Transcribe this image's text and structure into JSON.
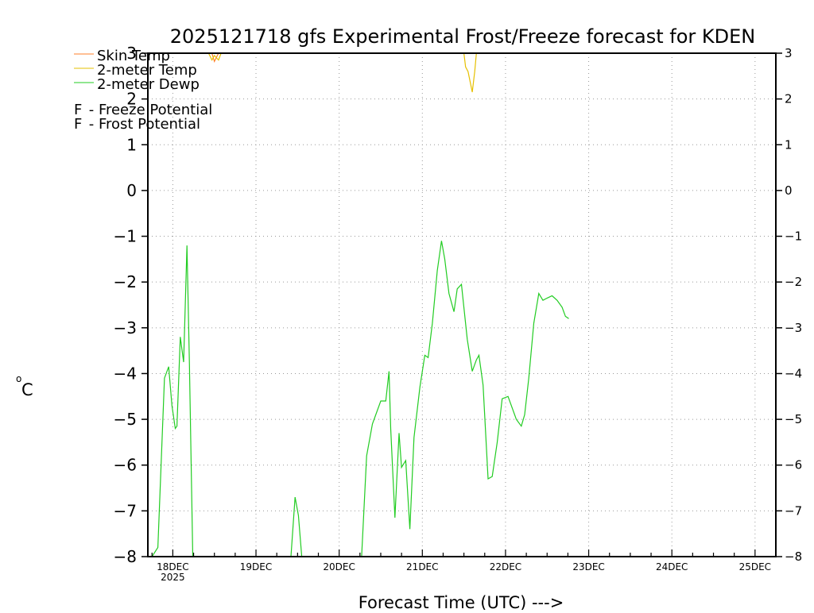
{
  "chart_data": {
    "type": "line",
    "title": "2025121718 gfs Experimental Frost/Freeze forecast for KDEN",
    "xlabel": "Forecast Time (UTC) --->",
    "ylabel": "°C",
    "ylabel_superscript": "o",
    "ylabel_unit": "C",
    "ylim": [
      -8,
      3
    ],
    "y_ticks": [
      3,
      2,
      1,
      0,
      -1,
      -2,
      -3,
      -4,
      -5,
      -6,
      -7,
      -8
    ],
    "xlim": [
      -0.3,
      7.25
    ],
    "x_ticks": [
      {
        "x": 0,
        "label": "18DEC",
        "sublabel": "2025"
      },
      {
        "x": 1,
        "label": "19DEC",
        "sublabel": ""
      },
      {
        "x": 2,
        "label": "20DEC",
        "sublabel": ""
      },
      {
        "x": 3,
        "label": "21DEC",
        "sublabel": ""
      },
      {
        "x": 4,
        "label": "22DEC",
        "sublabel": ""
      },
      {
        "x": 5,
        "label": "23DEC",
        "sublabel": ""
      },
      {
        "x": 6,
        "label": "24DEC",
        "sublabel": ""
      },
      {
        "x": 7,
        "label": "25DEC",
        "sublabel": ""
      }
    ],
    "grid": true,
    "legend": [
      {
        "name": "Skin Temp",
        "color": "#ff7f2a"
      },
      {
        "name": "2-meter Temp",
        "color": "#e6c000"
      },
      {
        "name": "2-meter Dewp",
        "color": "#22cc22"
      }
    ],
    "potential_legend": [
      {
        "letter": "F",
        "text": " - Freeze Potential",
        "color": "#cc22aa"
      },
      {
        "letter": "F",
        "text": " - Frost Potential",
        "color": "#3355ee"
      }
    ],
    "series": [
      {
        "name": "Skin Temp",
        "color": "#ff7f2a",
        "segments": [
          [
            [
              0.47,
              3.0
            ],
            [
              0.5,
              2.82
            ],
            [
              0.55,
              3.0
            ]
          ]
        ]
      },
      {
        "name": "2-meter Temp",
        "color": "#e6c000",
        "segments": [
          [
            [
              0.43,
              3.0
            ],
            [
              0.47,
              2.85
            ],
            [
              0.5,
              2.95
            ],
            [
              0.55,
              2.85
            ],
            [
              0.58,
              3.0
            ]
          ],
          [
            [
              3.5,
              3.0
            ],
            [
              3.52,
              2.7
            ],
            [
              3.55,
              2.6
            ],
            [
              3.6,
              2.15
            ],
            [
              3.63,
              2.6
            ],
            [
              3.65,
              3.0
            ]
          ]
        ]
      },
      {
        "name": "2-meter Dewp",
        "color": "#22cc22",
        "segments": [
          [
            [
              -0.25,
              -8.0
            ],
            [
              -0.18,
              -7.8
            ],
            [
              -0.1,
              -4.1
            ],
            [
              -0.05,
              -3.85
            ],
            [
              -0.01,
              -4.7
            ],
            [
              0.03,
              -5.2
            ],
            [
              0.05,
              -5.15
            ],
            [
              0.09,
              -3.2
            ],
            [
              0.13,
              -3.75
            ],
            [
              0.17,
              -1.2
            ],
            [
              0.2,
              -3.8
            ],
            [
              0.22,
              -5.9
            ],
            [
              0.24,
              -8.0
            ]
          ],
          [
            [
              1.42,
              -8.0
            ],
            [
              1.47,
              -6.7
            ],
            [
              1.51,
              -7.1
            ],
            [
              1.55,
              -8.0
            ]
          ],
          [
            [
              2.27,
              -8.0
            ],
            [
              2.33,
              -5.8
            ],
            [
              2.4,
              -5.1
            ],
            [
              2.5,
              -4.6
            ],
            [
              2.56,
              -4.6
            ],
            [
              2.6,
              -3.95
            ],
            [
              2.62,
              -5.2
            ],
            [
              2.67,
              -7.15
            ],
            [
              2.72,
              -5.3
            ],
            [
              2.75,
              -6.05
            ],
            [
              2.8,
              -5.9
            ],
            [
              2.85,
              -7.4
            ],
            [
              2.9,
              -5.4
            ],
            [
              2.97,
              -4.3
            ],
            [
              3.03,
              -3.6
            ],
            [
              3.07,
              -3.65
            ],
            [
              3.12,
              -2.9
            ],
            [
              3.18,
              -1.75
            ],
            [
              3.23,
              -1.1
            ],
            [
              3.27,
              -1.5
            ],
            [
              3.32,
              -2.25
            ],
            [
              3.38,
              -2.65
            ],
            [
              3.42,
              -2.15
            ],
            [
              3.47,
              -2.05
            ],
            [
              3.54,
              -3.25
            ],
            [
              3.6,
              -3.95
            ],
            [
              3.65,
              -3.7
            ],
            [
              3.68,
              -3.6
            ],
            [
              3.73,
              -4.25
            ],
            [
              3.79,
              -6.3
            ],
            [
              3.84,
              -6.25
            ],
            [
              3.9,
              -5.5
            ],
            [
              3.96,
              -4.55
            ],
            [
              4.03,
              -4.5
            ],
            [
              4.08,
              -4.75
            ],
            [
              4.13,
              -5.0
            ],
            [
              4.19,
              -5.15
            ],
            [
              4.23,
              -4.9
            ],
            [
              4.28,
              -4.1
            ],
            [
              4.34,
              -2.9
            ],
            [
              4.4,
              -2.25
            ],
            [
              4.45,
              -2.4
            ],
            [
              4.5,
              -2.35
            ],
            [
              4.56,
              -2.3
            ],
            [
              4.62,
              -2.4
            ],
            [
              4.68,
              -2.55
            ],
            [
              4.72,
              -2.75
            ],
            [
              4.76,
              -2.8
            ]
          ]
        ]
      }
    ]
  }
}
